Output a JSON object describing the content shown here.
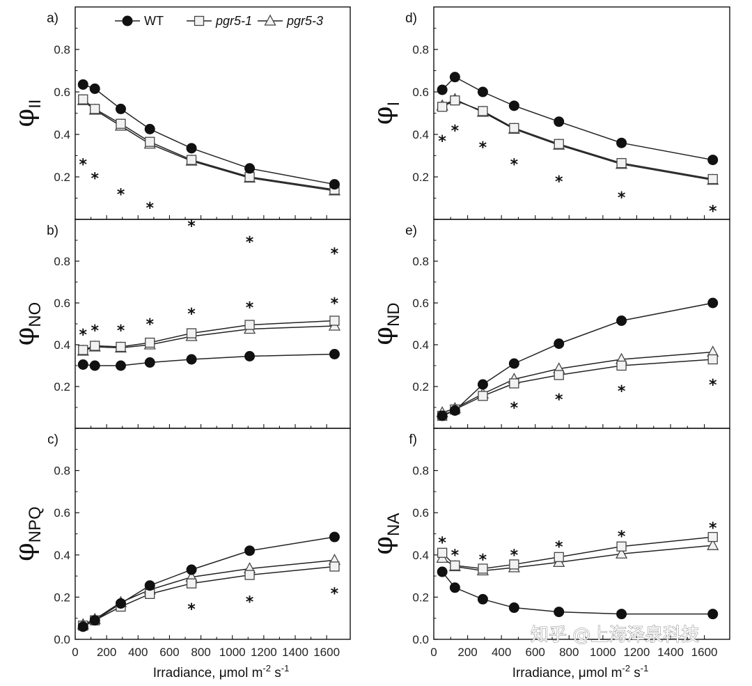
{
  "watermark": "知乎 @上海泽泉科技",
  "legend": [
    {
      "name": "WT",
      "marker": "circle-filled",
      "italic": false
    },
    {
      "name": "pgr5-1",
      "marker": "square-open",
      "italic": true
    },
    {
      "name": "pgr5-3",
      "marker": "triangle-open",
      "italic": true
    }
  ],
  "axis": {
    "xlabel_main": "Irradiance, μmol m",
    "xlabel_sup1": "-2",
    "xlabel_mid": " s",
    "xlabel_sup2": "-1",
    "x_ticks": [
      "0",
      "200",
      "400",
      "600",
      "800",
      "1000",
      "1200",
      "1400",
      "1600"
    ],
    "y_ticks": [
      "0.0",
      "0.2",
      "0.4",
      "0.6",
      "0.8"
    ]
  },
  "colors": {
    "line": "#222222",
    "marker_fill_open": "#f2f2f2",
    "frame": "#111111"
  },
  "chart_data": [
    {
      "type": "line",
      "id": "a",
      "letter": "a)",
      "ylabel": "φ",
      "ylabel_sub": "II",
      "xlim": [
        0,
        1750
      ],
      "ylim": [
        0.0,
        1.0
      ],
      "x": [
        50,
        125,
        290,
        475,
        740,
        1110,
        1650
      ],
      "series": [
        {
          "name": "WT",
          "values": [
            0.635,
            0.615,
            0.52,
            0.425,
            0.335,
            0.24,
            0.165
          ]
        },
        {
          "name": "pgr5-1",
          "values": [
            0.565,
            0.52,
            0.45,
            0.365,
            0.28,
            0.2,
            0.14
          ]
        },
        {
          "name": "pgr5-3",
          "values": [
            0.56,
            0.515,
            0.44,
            0.355,
            0.275,
            0.195,
            0.135
          ]
        }
      ],
      "significance": [
        {
          "x": 50,
          "y": 0.28
        },
        {
          "x": 125,
          "y": 0.215
        },
        {
          "x": 290,
          "y": 0.14
        },
        {
          "x": 475,
          "y": 0.075
        },
        {
          "x": 740,
          "y": -0.01
        },
        {
          "x": 1110,
          "y": -0.085
        },
        {
          "x": 1650,
          "y": -0.14
        }
      ],
      "significance_label": "*"
    },
    {
      "type": "line",
      "id": "b",
      "letter": "b)",
      "ylabel": "φ",
      "ylabel_sub": "NO",
      "xlim": [
        0,
        1750
      ],
      "ylim": [
        0.0,
        1.0
      ],
      "x": [
        50,
        125,
        290,
        475,
        740,
        1110,
        1650
      ],
      "series": [
        {
          "name": "WT",
          "values": [
            0.305,
            0.3,
            0.3,
            0.315,
            0.33,
            0.345,
            0.355
          ]
        },
        {
          "name": "pgr5-1",
          "values": [
            0.375,
            0.395,
            0.39,
            0.41,
            0.455,
            0.495,
            0.515
          ]
        },
        {
          "name": "pgr5-3",
          "values": [
            0.37,
            0.39,
            0.385,
            0.4,
            0.44,
            0.475,
            0.49
          ]
        }
      ],
      "significance": [
        {
          "x": 50,
          "y": 0.47
        },
        {
          "x": 125,
          "y": 0.49
        },
        {
          "x": 290,
          "y": 0.49
        },
        {
          "x": 475,
          "y": 0.52
        },
        {
          "x": 740,
          "y": 0.57
        },
        {
          "x": 1110,
          "y": 0.6
        },
        {
          "x": 1650,
          "y": 0.62
        }
      ],
      "significance_label": "*"
    },
    {
      "type": "line",
      "id": "c",
      "letter": "c)",
      "ylabel": "φ",
      "ylabel_sub": "NPQ",
      "xlim": [
        0,
        1750
      ],
      "ylim": [
        0.0,
        1.0
      ],
      "x": [
        50,
        125,
        290,
        475,
        740,
        1110,
        1650
      ],
      "series": [
        {
          "name": "WT",
          "values": [
            0.06,
            0.09,
            0.17,
            0.255,
            0.33,
            0.42,
            0.485
          ]
        },
        {
          "name": "pgr5-1",
          "values": [
            0.065,
            0.09,
            0.155,
            0.215,
            0.265,
            0.305,
            0.345
          ]
        },
        {
          "name": "pgr5-3",
          "values": [
            0.07,
            0.095,
            0.175,
            0.235,
            0.295,
            0.335,
            0.375
          ]
        }
      ],
      "significance": [
        {
          "x": 740,
          "y": 0.165
        },
        {
          "x": 1110,
          "y": 0.2
        },
        {
          "x": 1650,
          "y": 0.24
        }
      ],
      "significance_label": "*"
    },
    {
      "type": "line",
      "id": "d",
      "letter": "d)",
      "ylabel": "φ",
      "ylabel_sub": "I",
      "xlim": [
        0,
        1750
      ],
      "ylim": [
        0.0,
        1.0
      ],
      "x": [
        50,
        125,
        290,
        475,
        740,
        1110,
        1650
      ],
      "series": [
        {
          "name": "WT",
          "values": [
            0.61,
            0.67,
            0.6,
            0.535,
            0.46,
            0.36,
            0.28
          ]
        },
        {
          "name": "pgr5-1",
          "values": [
            0.53,
            0.56,
            0.51,
            0.43,
            0.355,
            0.265,
            0.19
          ]
        },
        {
          "name": "pgr5-3",
          "values": [
            0.535,
            0.565,
            0.505,
            0.425,
            0.35,
            0.26,
            0.185
          ]
        }
      ],
      "significance": [
        {
          "x": 50,
          "y": 0.39
        },
        {
          "x": 125,
          "y": 0.44
        },
        {
          "x": 290,
          "y": 0.36
        },
        {
          "x": 475,
          "y": 0.28
        },
        {
          "x": 740,
          "y": 0.2
        },
        {
          "x": 1110,
          "y": 0.125
        },
        {
          "x": 1650,
          "y": 0.06
        }
      ],
      "significance_label": "*"
    },
    {
      "type": "line",
      "id": "e",
      "letter": "e)",
      "ylabel": "φ",
      "ylabel_sub": "ND",
      "xlim": [
        0,
        1750
      ],
      "ylim": [
        0.0,
        1.0
      ],
      "x": [
        50,
        125,
        290,
        475,
        740,
        1110,
        1650
      ],
      "series": [
        {
          "name": "WT",
          "values": [
            0.06,
            0.085,
            0.21,
            0.31,
            0.405,
            0.515,
            0.6
          ]
        },
        {
          "name": "pgr5-1",
          "values": [
            0.06,
            0.09,
            0.155,
            0.215,
            0.255,
            0.3,
            0.33
          ]
        },
        {
          "name": "pgr5-3",
          "values": [
            0.075,
            0.095,
            0.165,
            0.235,
            0.285,
            0.33,
            0.365
          ]
        }
      ],
      "significance": [
        {
          "x": 475,
          "y": 0.12
        },
        {
          "x": 740,
          "y": 0.16
        },
        {
          "x": 1110,
          "y": 0.2
        },
        {
          "x": 1650,
          "y": 0.23
        }
      ],
      "significance_label": "*"
    },
    {
      "type": "line",
      "id": "f",
      "letter": "f)",
      "ylabel": "φ",
      "ylabel_sub": "NA",
      "xlim": [
        0,
        1750
      ],
      "ylim": [
        0.0,
        1.0
      ],
      "x": [
        50,
        125,
        290,
        475,
        740,
        1110,
        1650
      ],
      "series": [
        {
          "name": "WT",
          "values": [
            0.32,
            0.245,
            0.19,
            0.15,
            0.13,
            0.12,
            0.12
          ]
        },
        {
          "name": "pgr5-1",
          "values": [
            0.41,
            0.35,
            0.335,
            0.355,
            0.39,
            0.44,
            0.485
          ]
        },
        {
          "name": "pgr5-3",
          "values": [
            0.385,
            0.345,
            0.325,
            0.34,
            0.365,
            0.405,
            0.445
          ]
        }
      ],
      "significance": [
        {
          "x": 50,
          "y": 0.48
        },
        {
          "x": 125,
          "y": 0.42
        },
        {
          "x": 290,
          "y": 0.4
        },
        {
          "x": 475,
          "y": 0.42
        },
        {
          "x": 740,
          "y": 0.46
        },
        {
          "x": 1110,
          "y": 0.51
        },
        {
          "x": 1650,
          "y": 0.55
        }
      ],
      "significance_label": "*"
    }
  ]
}
